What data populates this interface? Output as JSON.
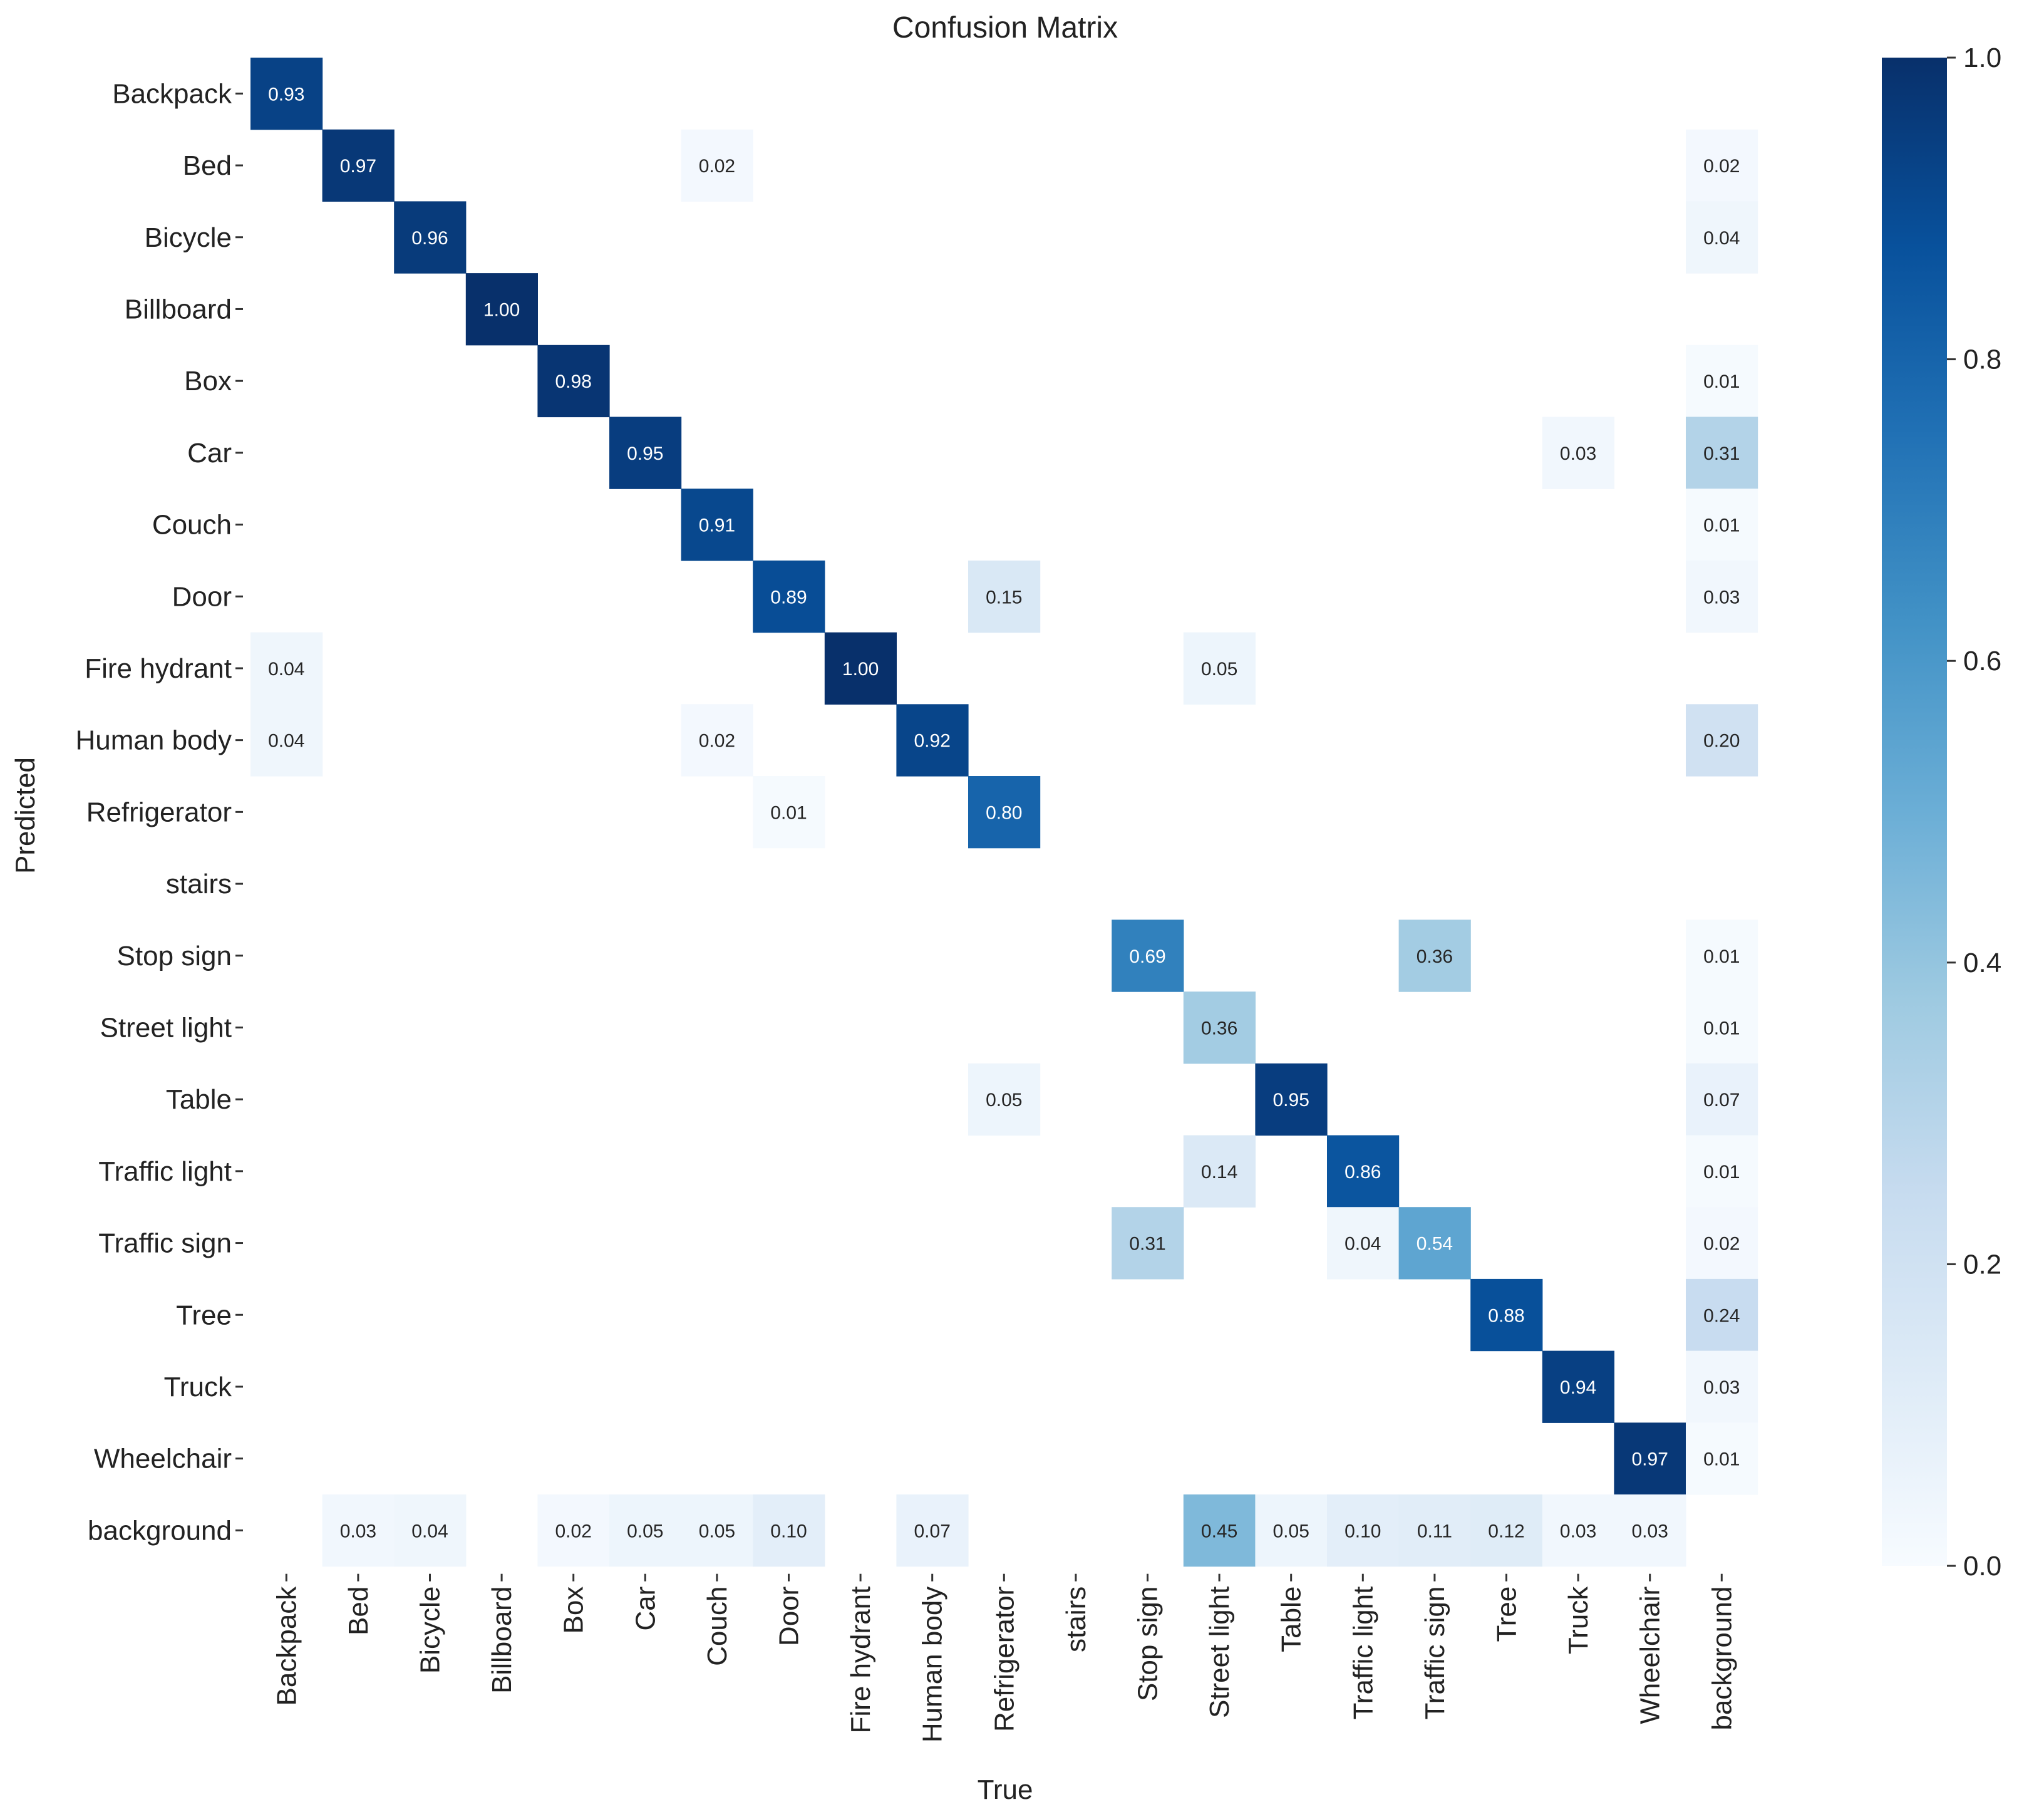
{
  "chart_data": {
    "type": "heatmap",
    "title": "Confusion Matrix",
    "xlabel": "True",
    "ylabel": "Predicted",
    "x_categories": [
      "Backpack",
      "Bed",
      "Bicycle",
      "Billboard",
      "Box",
      "Car",
      "Couch",
      "Door",
      "Fire hydrant",
      "Human body",
      "Refrigerator",
      "stairs",
      "Stop sign",
      "Street light",
      "Table",
      "Traffic light",
      "Traffic sign",
      "Tree",
      "Truck",
      "Wheelchair",
      "background"
    ],
    "y_categories": [
      "Backpack",
      "Bed",
      "Bicycle",
      "Billboard",
      "Box",
      "Car",
      "Couch",
      "Door",
      "Fire hydrant",
      "Human body",
      "Refrigerator",
      "stairs",
      "Stop sign",
      "Street light",
      "Table",
      "Traffic light",
      "Traffic sign",
      "Tree",
      "Truck",
      "Wheelchair",
      "background"
    ],
    "values": [
      [
        0.93,
        0,
        0,
        0,
        0,
        0,
        0,
        0,
        0,
        0,
        0,
        0,
        0,
        0,
        0,
        0,
        0,
        0,
        0,
        0,
        0
      ],
      [
        0,
        0.97,
        0,
        0,
        0,
        0,
        0.02,
        0,
        0,
        0,
        0,
        0,
        0,
        0,
        0,
        0,
        0,
        0,
        0,
        0,
        0.02
      ],
      [
        0,
        0,
        0.96,
        0,
        0,
        0,
        0,
        0,
        0,
        0,
        0,
        0,
        0,
        0,
        0,
        0,
        0,
        0,
        0,
        0,
        0.04
      ],
      [
        0,
        0,
        0,
        1.0,
        0,
        0,
        0,
        0,
        0,
        0,
        0,
        0,
        0,
        0,
        0,
        0,
        0,
        0,
        0,
        0,
        0
      ],
      [
        0,
        0,
        0,
        0,
        0.98,
        0,
        0,
        0,
        0,
        0,
        0,
        0,
        0,
        0,
        0,
        0,
        0,
        0,
        0,
        0,
        0.01
      ],
      [
        0,
        0,
        0,
        0,
        0,
        0.95,
        0,
        0,
        0,
        0,
        0,
        0,
        0,
        0,
        0,
        0,
        0,
        0,
        0.03,
        0,
        0.31
      ],
      [
        0,
        0,
        0,
        0,
        0,
        0,
        0.91,
        0,
        0,
        0,
        0,
        0,
        0,
        0,
        0,
        0,
        0,
        0,
        0,
        0,
        0.01
      ],
      [
        0,
        0,
        0,
        0,
        0,
        0,
        0,
        0.89,
        0,
        0,
        0.15,
        0,
        0,
        0,
        0,
        0,
        0,
        0,
        0,
        0,
        0.03
      ],
      [
        0.04,
        0,
        0,
        0,
        0,
        0,
        0,
        0,
        1.0,
        0,
        0,
        0,
        0,
        0.05,
        0,
        0,
        0,
        0,
        0,
        0,
        0
      ],
      [
        0.04,
        0,
        0,
        0,
        0,
        0,
        0.02,
        0,
        0,
        0.92,
        0,
        0,
        0,
        0,
        0,
        0,
        0,
        0,
        0,
        0,
        0.2
      ],
      [
        0,
        0,
        0,
        0,
        0,
        0,
        0,
        0.01,
        0,
        0,
        0.8,
        0,
        0,
        0,
        0,
        0,
        0,
        0,
        0,
        0,
        0
      ],
      [
        0,
        0,
        0,
        0,
        0,
        0,
        0,
        0,
        0,
        0,
        0,
        0,
        0,
        0,
        0,
        0,
        0,
        0,
        0,
        0,
        0
      ],
      [
        0,
        0,
        0,
        0,
        0,
        0,
        0,
        0,
        0,
        0,
        0,
        0,
        0.69,
        0,
        0,
        0,
        0.36,
        0,
        0,
        0,
        0.01
      ],
      [
        0,
        0,
        0,
        0,
        0,
        0,
        0,
        0,
        0,
        0,
        0,
        0,
        0,
        0.36,
        0,
        0,
        0,
        0,
        0,
        0,
        0.01
      ],
      [
        0,
        0,
        0,
        0,
        0,
        0,
        0,
        0,
        0,
        0,
        0.05,
        0,
        0,
        0,
        0.95,
        0,
        0,
        0,
        0,
        0,
        0.07
      ],
      [
        0,
        0,
        0,
        0,
        0,
        0,
        0,
        0,
        0,
        0,
        0,
        0,
        0,
        0.14,
        0,
        0.86,
        0,
        0,
        0,
        0,
        0.01
      ],
      [
        0,
        0,
        0,
        0,
        0,
        0,
        0,
        0,
        0,
        0,
        0,
        0,
        0.31,
        0,
        0,
        0.04,
        0.54,
        0,
        0,
        0,
        0.02
      ],
      [
        0,
        0,
        0,
        0,
        0,
        0,
        0,
        0,
        0,
        0,
        0,
        0,
        0,
        0,
        0,
        0,
        0,
        0.88,
        0,
        0,
        0.24
      ],
      [
        0,
        0,
        0,
        0,
        0,
        0,
        0,
        0,
        0,
        0,
        0,
        0,
        0,
        0,
        0,
        0,
        0,
        0,
        0.94,
        0,
        0.03
      ],
      [
        0,
        0,
        0,
        0,
        0,
        0,
        0,
        0,
        0,
        0,
        0,
        0,
        0,
        0,
        0,
        0,
        0,
        0,
        0,
        0.97,
        0.01
      ],
      [
        0,
        0.03,
        0.04,
        0,
        0.02,
        0.05,
        0.05,
        0.1,
        0,
        0.07,
        0,
        0,
        0,
        0.45,
        0.05,
        0.1,
        0.11,
        0.12,
        0.03,
        0.03,
        0
      ]
    ],
    "value_format": "2 decimals, zero cells blank",
    "colorscale": "Blues",
    "colorbar": {
      "min": 0.0,
      "max": 1.0,
      "ticks": [
        "0.0",
        "0.2",
        "0.4",
        "0.6",
        "0.8",
        "1.0"
      ]
    },
    "grid": false
  }
}
